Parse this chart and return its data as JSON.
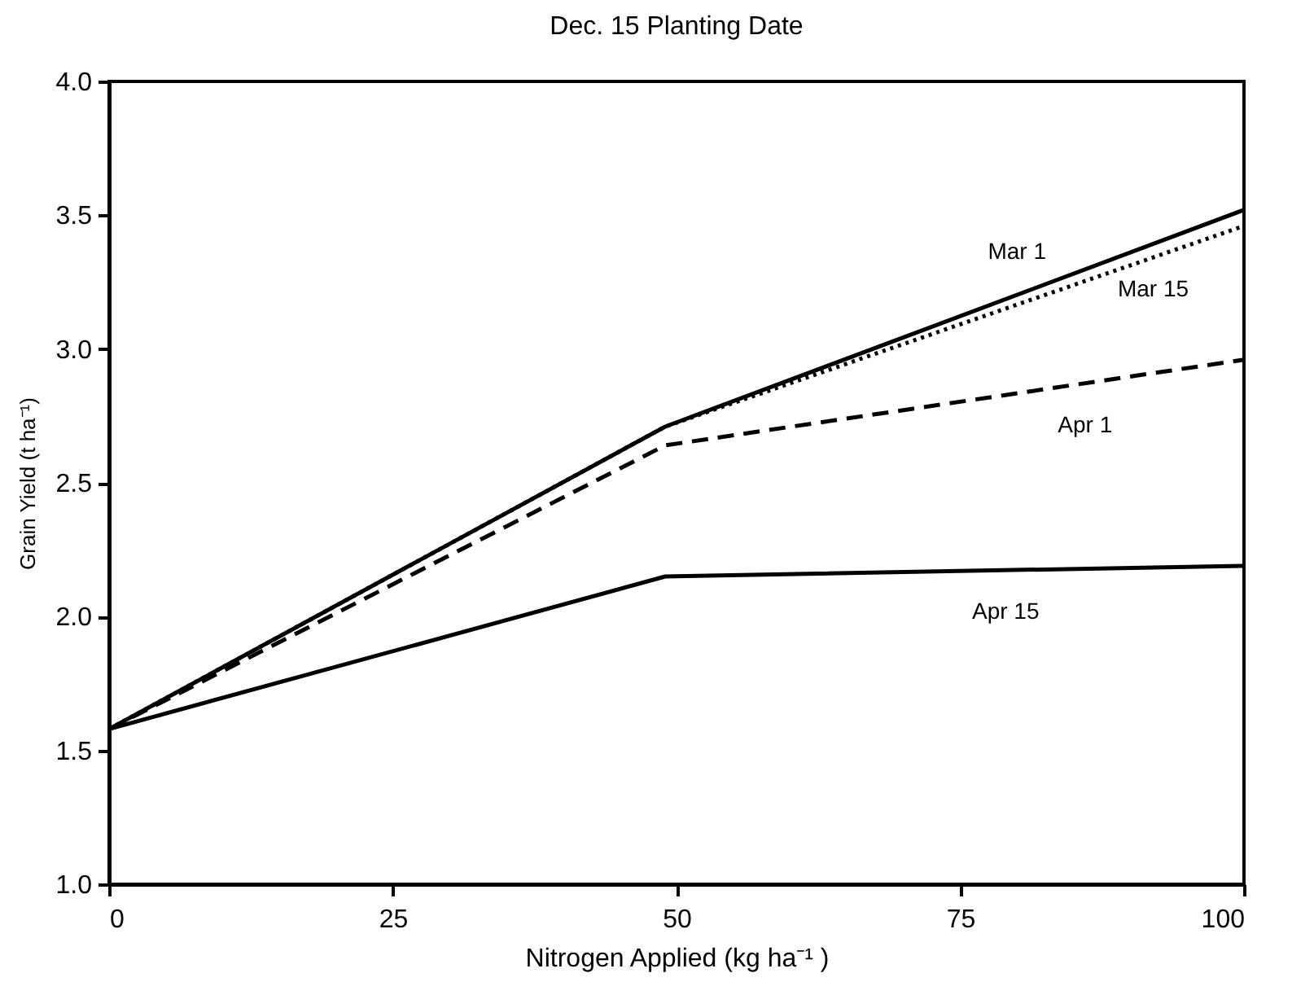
{
  "chart_data": {
    "type": "line",
    "title": "Dec. 15 Planting Date",
    "xlabel": "Nitrogen Applied (kg ha⁻¹ )",
    "ylabel": "Grain Yield (t ha⁻¹)",
    "x": [
      0,
      49,
      100
    ],
    "series": [
      {
        "name": "Mar 1",
        "color": "#000000",
        "line_style": "solid",
        "values": [
          1.58,
          2.71,
          3.52
        ]
      },
      {
        "name": "Mar 15",
        "color": "#000000",
        "line_style": "dotted",
        "values": [
          1.58,
          2.71,
          3.46
        ]
      },
      {
        "name": "Apr 1",
        "color": "#000000",
        "line_style": "dashed",
        "values": [
          1.58,
          2.64,
          2.96
        ]
      },
      {
        "name": "Apr 15",
        "color": "#000000",
        "line_style": "solid",
        "values": [
          1.58,
          2.15,
          2.19
        ]
      }
    ],
    "xlim": [
      0,
      100
    ],
    "xticks": [
      0,
      25,
      50,
      75,
      100
    ],
    "ylim": [
      1,
      4
    ],
    "yticks": [
      {
        "value": 1,
        "label": "1.0"
      },
      {
        "value": 1.5,
        "label": "1.5"
      },
      {
        "value": 2,
        "label": "2.0"
      },
      {
        "value": 2.5,
        "label": "2.5"
      },
      {
        "value": 3,
        "label": "3.0"
      },
      {
        "value": 3.5,
        "label": "3.5"
      },
      {
        "value": 4,
        "label": "4.0"
      }
    ],
    "grid": false,
    "legend": false,
    "marker": "none"
  }
}
